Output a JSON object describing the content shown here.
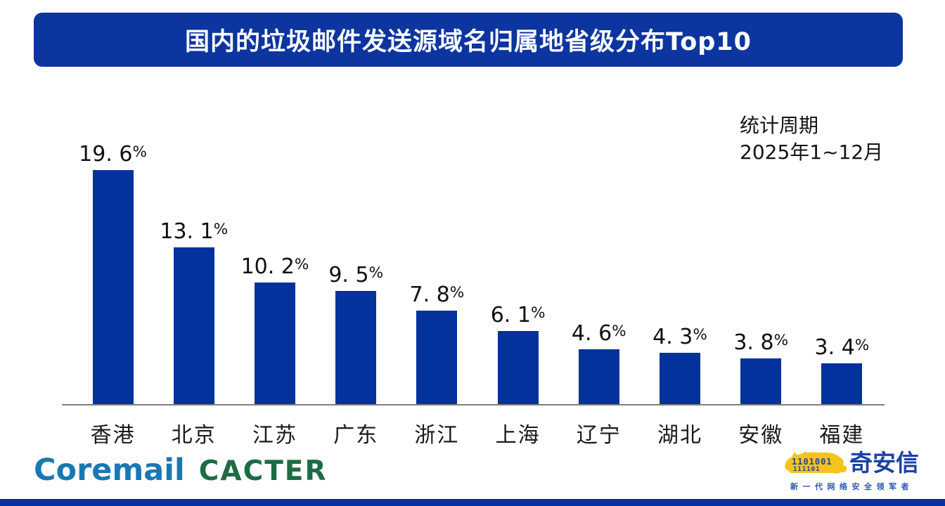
{
  "title": "国内的垃圾邮件发送源域名归属地省级分布Top10",
  "period": {
    "line1": "统计周期",
    "line2": "2025年1~12月"
  },
  "chart_data": {
    "type": "bar",
    "title": "国内的垃圾邮件发送源域名归属地省级分布Top10",
    "categories": [
      "香港",
      "北京",
      "江苏",
      "广东",
      "浙江",
      "上海",
      "辽宁",
      "湖北",
      "安徽",
      "福建"
    ],
    "values": [
      19.6,
      13.1,
      10.2,
      9.5,
      7.8,
      6.1,
      4.6,
      4.3,
      3.8,
      3.4
    ],
    "value_labels": [
      "19. 6%",
      "13. 1%",
      "10. 2%",
      "9. 5%",
      "7. 8%",
      "6. 1%",
      "4. 6%",
      "4. 3%",
      "3. 8%",
      "3. 4%"
    ],
    "xlabel": "",
    "ylabel": "",
    "ylim": [
      0,
      20
    ],
    "grid": false,
    "legend": false,
    "bar_color": "#04329c",
    "annotation": "统计周期 2025年1~12月"
  },
  "branding": {
    "coremail": "Coremail",
    "cacter": "CACTER",
    "qianxin": "奇安信",
    "qianxin_tagline": "新一代网络安全领军者",
    "qianxin_binary_row1": "1101001",
    "qianxin_binary_row2": "111101"
  },
  "colors": {
    "title_bg": "#0d35a0",
    "title_text": "#ffffff",
    "bar": "#04329c",
    "axis": "#7f7f7f",
    "bottom_strip": "#04329c",
    "coremail_blue": "#1878b3",
    "cacter_green": "#1e6b45",
    "qianxin_blue": "#1b41a8",
    "tiger_yellow": "#f6c31c"
  }
}
